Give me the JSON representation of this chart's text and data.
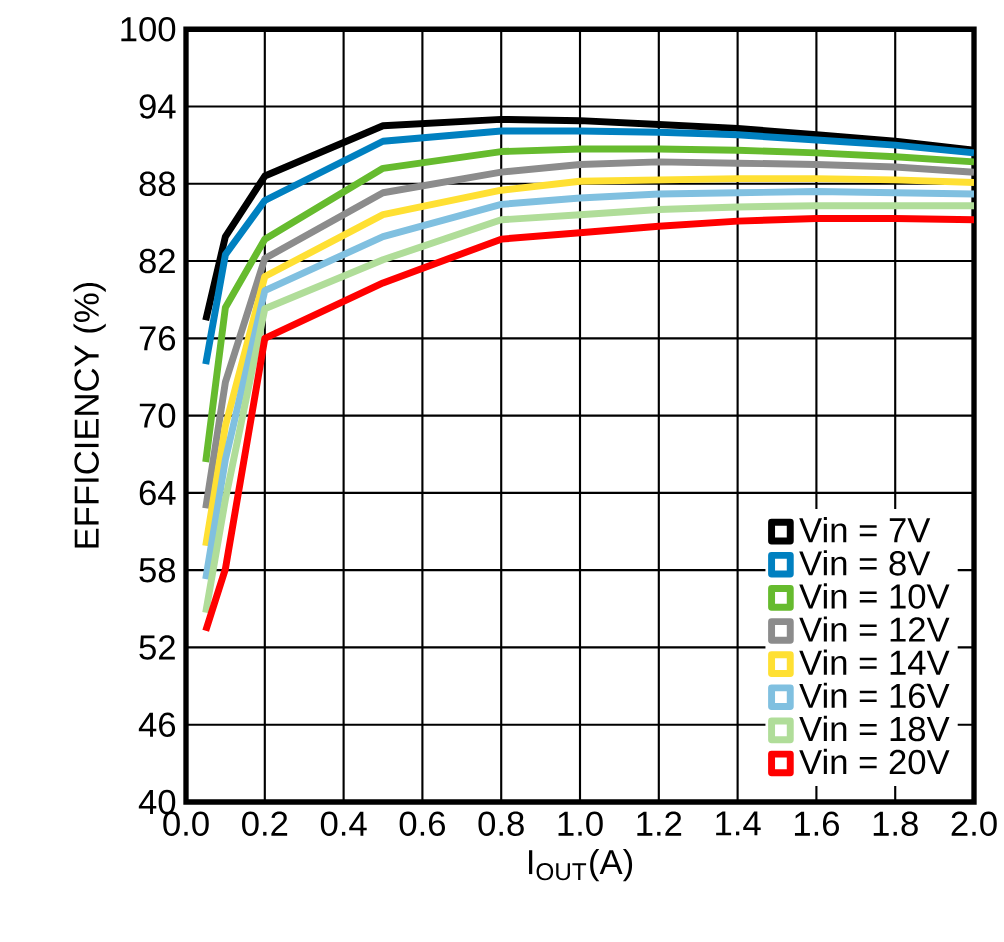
{
  "chart_data": {
    "type": "line",
    "xlabel": "I$_{OUT}$(A)",
    "ylabel": "EFFICIENCY (%)",
    "x": [
      0.05,
      0.1,
      0.2,
      0.5,
      0.8,
      1.0,
      1.2,
      1.4,
      1.6,
      1.8,
      2.0
    ],
    "series": [
      {
        "name": "Vin = 7V",
        "color": "#000000",
        "values": [
          77.4,
          83.9,
          88.6,
          92.5,
          93.0,
          92.9,
          92.6,
          92.3,
          91.8,
          91.3,
          90.6
        ]
      },
      {
        "name": "Vin = 8V",
        "color": "#0080c0",
        "values": [
          74.0,
          82.5,
          86.7,
          91.3,
          92.1,
          92.1,
          92.0,
          91.8,
          91.4,
          91.0,
          90.4
        ]
      },
      {
        "name": "Vin = 10V",
        "color": "#66bb2e",
        "values": [
          66.4,
          78.4,
          83.7,
          89.2,
          90.5,
          90.7,
          90.7,
          90.6,
          90.4,
          90.1,
          89.7
        ]
      },
      {
        "name": "Vin = 12V",
        "color": "#8c8c8c",
        "values": [
          62.8,
          72.6,
          82.2,
          87.3,
          88.9,
          89.5,
          89.7,
          89.6,
          89.5,
          89.3,
          88.9
        ]
      },
      {
        "name": "Vin = 14V",
        "color": "#ffe033",
        "values": [
          59.9,
          69.2,
          80.8,
          85.6,
          87.5,
          88.2,
          88.3,
          88.4,
          88.4,
          88.3,
          88.1
        ]
      },
      {
        "name": "Vin = 16V",
        "color": "#80c0e0",
        "values": [
          57.3,
          66.6,
          79.7,
          83.9,
          86.4,
          86.9,
          87.2,
          87.3,
          87.4,
          87.3,
          87.2
        ]
      },
      {
        "name": "Vin = 18V",
        "color": "#b0dd99",
        "values": [
          54.7,
          63.5,
          78.3,
          82.1,
          85.2,
          85.6,
          86.0,
          86.2,
          86.3,
          86.3,
          86.3
        ]
      },
      {
        "name": "Vin = 20V",
        "color": "#ff0000",
        "values": [
          53.3,
          58.1,
          76.0,
          80.3,
          83.7,
          84.2,
          84.7,
          85.1,
          85.3,
          85.3,
          85.2
        ]
      }
    ],
    "xlim": [
      0,
      2.0
    ],
    "ylim": [
      40,
      100
    ],
    "xticks": [
      {
        "value": 0,
        "label": "0.0"
      },
      0.2,
      0.4,
      0.6,
      0.8,
      {
        "value": 1.0,
        "label": "1.0"
      },
      1.2,
      1.4,
      1.6,
      1.8,
      {
        "value": 2.0,
        "label": "2.0"
      }
    ],
    "yticks": [
      40,
      46,
      52,
      58,
      64,
      70,
      76,
      82,
      88,
      94,
      100
    ],
    "grid": true,
    "legend": "bottom right"
  }
}
